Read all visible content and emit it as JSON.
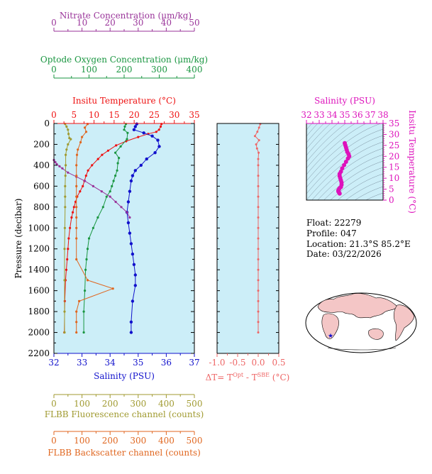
{
  "colors": {
    "nitrate": "#993399",
    "oxygen": "#1a9641",
    "temperature": "#ee1111",
    "salinity": "#1111cc",
    "fluorescence": "#a09a30",
    "backscatter": "#e0661f",
    "delta": "#ee6666",
    "ts_salinity": "#dd11bb",
    "plot_bg": "#cceef8",
    "map_land": "#f4c6c6",
    "map_ocean": "#ffffff",
    "marker": "#1111cc"
  },
  "axes": {
    "nitrate": {
      "title": "Nitrate Concentration (μm/kg)",
      "ticks": [
        "0",
        "10",
        "20",
        "30",
        "40",
        "50"
      ]
    },
    "oxygen": {
      "title": "Optode Oxygen Concentration (μm/kg)",
      "ticks": [
        "0",
        "100",
        "200",
        "300",
        "400"
      ]
    },
    "temperature": {
      "title": "Insitu Temperature (°C)",
      "ticks": [
        "0",
        "5",
        "10",
        "15",
        "20",
        "25",
        "30",
        "35"
      ]
    },
    "pressure": {
      "title": "Pressure (decibar)",
      "ticks": [
        "0",
        "200",
        "400",
        "600",
        "800",
        "1000",
        "1200",
        "1400",
        "1600",
        "1800",
        "2000",
        "2200"
      ]
    },
    "salinity": {
      "title": "Salinity (PSU)",
      "ticks": [
        "32",
        "33",
        "34",
        "35",
        "36",
        "37"
      ]
    },
    "delta": {
      "title": "ΔT= T",
      "sup1": "Opt",
      "mid": " - T",
      "sup2": "SBE",
      "tail": " (°C)",
      "ticks": [
        "-1.0",
        "-0.5",
        "0.0",
        "0.5"
      ]
    },
    "fluorescence": {
      "title": "FLBB Fluorescence channel (counts)",
      "ticks": [
        "0",
        "100",
        "200",
        "300",
        "400",
        "500"
      ]
    },
    "backscatter": {
      "title": "FLBB Backscatter channel (counts)",
      "ticks": [
        "0",
        "100",
        "200",
        "300",
        "400",
        "500"
      ]
    },
    "ts_salinity": {
      "title": "Salinity (PSU)",
      "ticks": [
        "32",
        "33",
        "34",
        "35",
        "36",
        "37",
        "38"
      ]
    },
    "ts_temperature": {
      "title": "Insitu Temperature (°C)",
      "ticks": [
        "0",
        "5",
        "10",
        "15",
        "20",
        "25",
        "30",
        "35"
      ]
    }
  },
  "info": {
    "float": "Float:  22279",
    "profile": "Profile:  047",
    "location": "Location:  21.3°S  85.2°E",
    "date": "Date:  03/22/2026"
  },
  "chart_data": [
    {
      "type": "line",
      "name": "profile",
      "ylim": [
        0,
        2200
      ],
      "series": [
        {
          "key": "temperature",
          "xlim": [
            0,
            35
          ],
          "x": [
            26.8,
            26.6,
            26.2,
            25.5,
            23.5,
            21.0,
            18.0,
            15.5,
            13.5,
            12.0,
            11.0,
            9.5,
            8.5,
            8.0,
            7.6,
            7.2,
            6.5,
            5.8,
            5.4,
            5.0,
            4.7,
            4.4,
            4.0,
            3.7,
            3.5,
            3.3,
            3.1,
            2.9,
            2.7,
            2.6
          ],
          "y": [
            5,
            30,
            60,
            80,
            100,
            130,
            170,
            210,
            260,
            300,
            340,
            400,
            450,
            500,
            550,
            600,
            650,
            700,
            750,
            800,
            850,
            900,
            1000,
            1100,
            1200,
            1300,
            1400,
            1500,
            1700,
            2000
          ]
        },
        {
          "key": "salinity",
          "xlim": [
            32,
            37
          ],
          "x": [
            34.95,
            34.9,
            34.85,
            35.2,
            35.5,
            35.7,
            35.75,
            35.6,
            35.3,
            35.1,
            34.9,
            34.8,
            34.75,
            34.7,
            34.65,
            34.6,
            34.65,
            34.7,
            34.75,
            34.8,
            34.85,
            34.9,
            34.9,
            34.8,
            34.75,
            34.75
          ],
          "y": [
            5,
            30,
            60,
            90,
            120,
            160,
            220,
            280,
            340,
            400,
            450,
            500,
            550,
            650,
            750,
            850,
            950,
            1050,
            1150,
            1250,
            1350,
            1450,
            1550,
            1700,
            1900,
            2000
          ]
        },
        {
          "key": "oxygen",
          "xlim": [
            0,
            400
          ],
          "x": [
            205,
            202,
            200,
            210,
            208,
            190,
            175,
            185,
            182,
            180,
            175,
            170,
            165,
            160,
            150,
            140,
            125,
            112,
            100,
            96,
            93,
            90,
            88,
            85,
            85
          ],
          "y": [
            5,
            30,
            60,
            90,
            150,
            220,
            280,
            330,
            380,
            450,
            500,
            550,
            600,
            650,
            700,
            800,
            900,
            1000,
            1100,
            1200,
            1300,
            1400,
            1600,
            1800,
            2000
          ]
        },
        {
          "key": "nitrate",
          "xlim": [
            0,
            50
          ],
          "x": [
            0,
            0.5,
            1.0,
            2.0,
            3.0,
            5.0,
            8.0,
            11.0,
            14.0,
            17.0,
            20.0,
            22.0,
            24.0,
            26.0,
            27.0
          ],
          "y": [
            350,
            370,
            390,
            410,
            430,
            470,
            510,
            550,
            600,
            650,
            700,
            750,
            800,
            850,
            900
          ]
        },
        {
          "key": "fluorescence",
          "xlim": [
            0,
            500
          ],
          "x": [
            40,
            45,
            50,
            52,
            55,
            60,
            50,
            45,
            42,
            42,
            41,
            40,
            40,
            40,
            39,
            38,
            38,
            38,
            38
          ],
          "y": [
            5,
            30,
            60,
            100,
            140,
            150,
            200,
            250,
            300,
            400,
            500,
            600,
            700,
            800,
            1000,
            1200,
            1500,
            1800,
            2000
          ]
        },
        {
          "key": "backscatter",
          "xlim": [
            0,
            500
          ],
          "x": [
            120,
            110,
            115,
            100,
            95,
            85,
            82,
            80,
            80,
            80,
            80,
            80,
            80,
            80,
            80,
            80,
            120,
            210,
            90,
            80,
            80,
            80
          ],
          "y": [
            5,
            40,
            80,
            130,
            180,
            250,
            300,
            400,
            500,
            600,
            700,
            800,
            900,
            1000,
            1100,
            1300,
            1500,
            1580,
            1700,
            1800,
            1900,
            2000
          ]
        }
      ]
    },
    {
      "type": "line",
      "name": "delta_t",
      "xlim": [
        -1.0,
        0.5
      ],
      "ylim": [
        0,
        2200
      ],
      "series": [
        {
          "key": "delta",
          "x": [
            0.05,
            0.02,
            -0.02,
            -0.08,
            0.02,
            -0.05,
            -0.03,
            0.01,
            0.0,
            0.0,
            0.0,
            0.0,
            0.0,
            0.0,
            0.0,
            0.0,
            0.0,
            0.0,
            0.0,
            0.0,
            0.0,
            0.0,
            0.0,
            0.0,
            0.0,
            0.0
          ],
          "y": [
            5,
            40,
            80,
            120,
            160,
            200,
            240,
            280,
            340,
            400,
            500,
            600,
            700,
            800,
            900,
            1000,
            1100,
            1200,
            1300,
            1400,
            1500,
            1600,
            1700,
            1800,
            1900,
            2000
          ]
        }
      ]
    },
    {
      "type": "scatter",
      "name": "ts_diagram",
      "xlim": [
        32,
        38
      ],
      "ylim": [
        0,
        35
      ],
      "series": [
        {
          "key": "ts_salinity",
          "x": [
            35.0,
            35.05,
            35.1,
            35.15,
            35.2,
            35.3,
            35.35,
            35.25,
            35.1,
            34.95,
            34.8,
            34.7,
            34.6,
            34.6,
            34.65,
            34.7,
            34.75,
            34.75,
            34.7,
            34.6,
            34.55,
            34.5,
            34.5,
            34.55,
            34.6
          ],
          "y": [
            26,
            25,
            24,
            23,
            22,
            21,
            20,
            19,
            17.5,
            16,
            14.5,
            13,
            12,
            11,
            10,
            9,
            8,
            7,
            6,
            5.5,
            5,
            4.5,
            4,
            3.5,
            3
          ]
        }
      ]
    }
  ]
}
